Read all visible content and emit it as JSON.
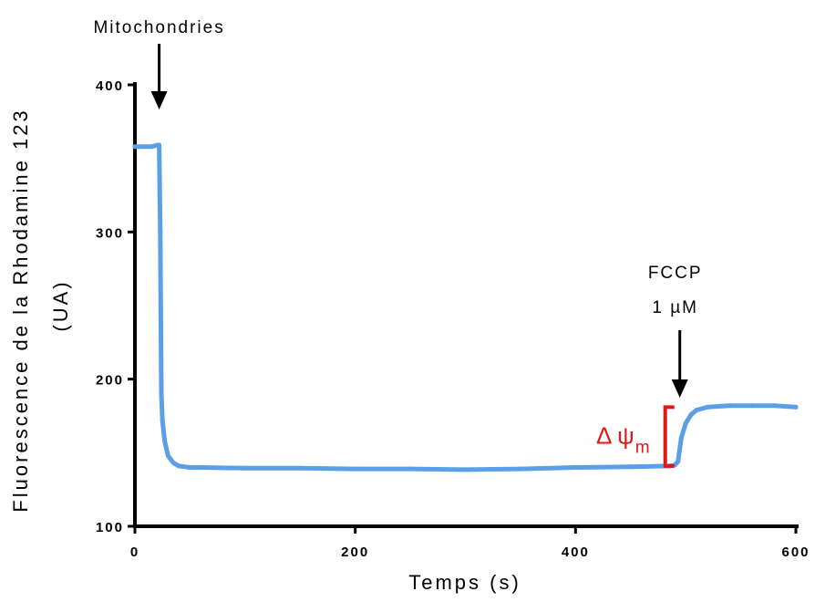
{
  "chart_data": {
    "type": "line",
    "xlabel": "Temps (s)",
    "ylabel_line1": "Fluorescence de la Rhodamine 123",
    "ylabel_line2": "(UA)",
    "xlim": [
      0,
      600
    ],
    "ylim": [
      100,
      400
    ],
    "xticks": [
      "0",
      "200",
      "400",
      "600"
    ],
    "yticks": [
      "100",
      "200",
      "300",
      "400"
    ],
    "grid": false,
    "legend": "none",
    "series": [
      {
        "color": "#5aa0e8",
        "x": [
          0,
          5,
          10,
          15,
          20,
          22,
          23,
          24,
          25,
          27,
          30,
          35,
          40,
          50,
          60,
          100,
          150,
          200,
          250,
          300,
          350,
          400,
          450,
          485,
          490,
          493,
          496,
          500,
          505,
          510,
          520,
          540,
          560,
          580,
          600
        ],
        "y": [
          358,
          358,
          358,
          358,
          359,
          359,
          300,
          190,
          172,
          158,
          148,
          143,
          141,
          140,
          140,
          139.5,
          139.5,
          139,
          139,
          138.5,
          139,
          140,
          140.5,
          141,
          141.5,
          144,
          160,
          170,
          176,
          179,
          181,
          182,
          182,
          182,
          181
        ]
      }
    ],
    "annotations": {
      "mitochondria_label": "Mitochondries",
      "mitochondria_x": 22,
      "fccp_line1": "FCCP",
      "fccp_line2": "1 µM",
      "fccp_x": 493,
      "delta_symbol": "Δ ψ",
      "delta_sub": "m",
      "bracket_y": [
        141,
        181
      ],
      "bracket_color": "#e01818"
    }
  }
}
